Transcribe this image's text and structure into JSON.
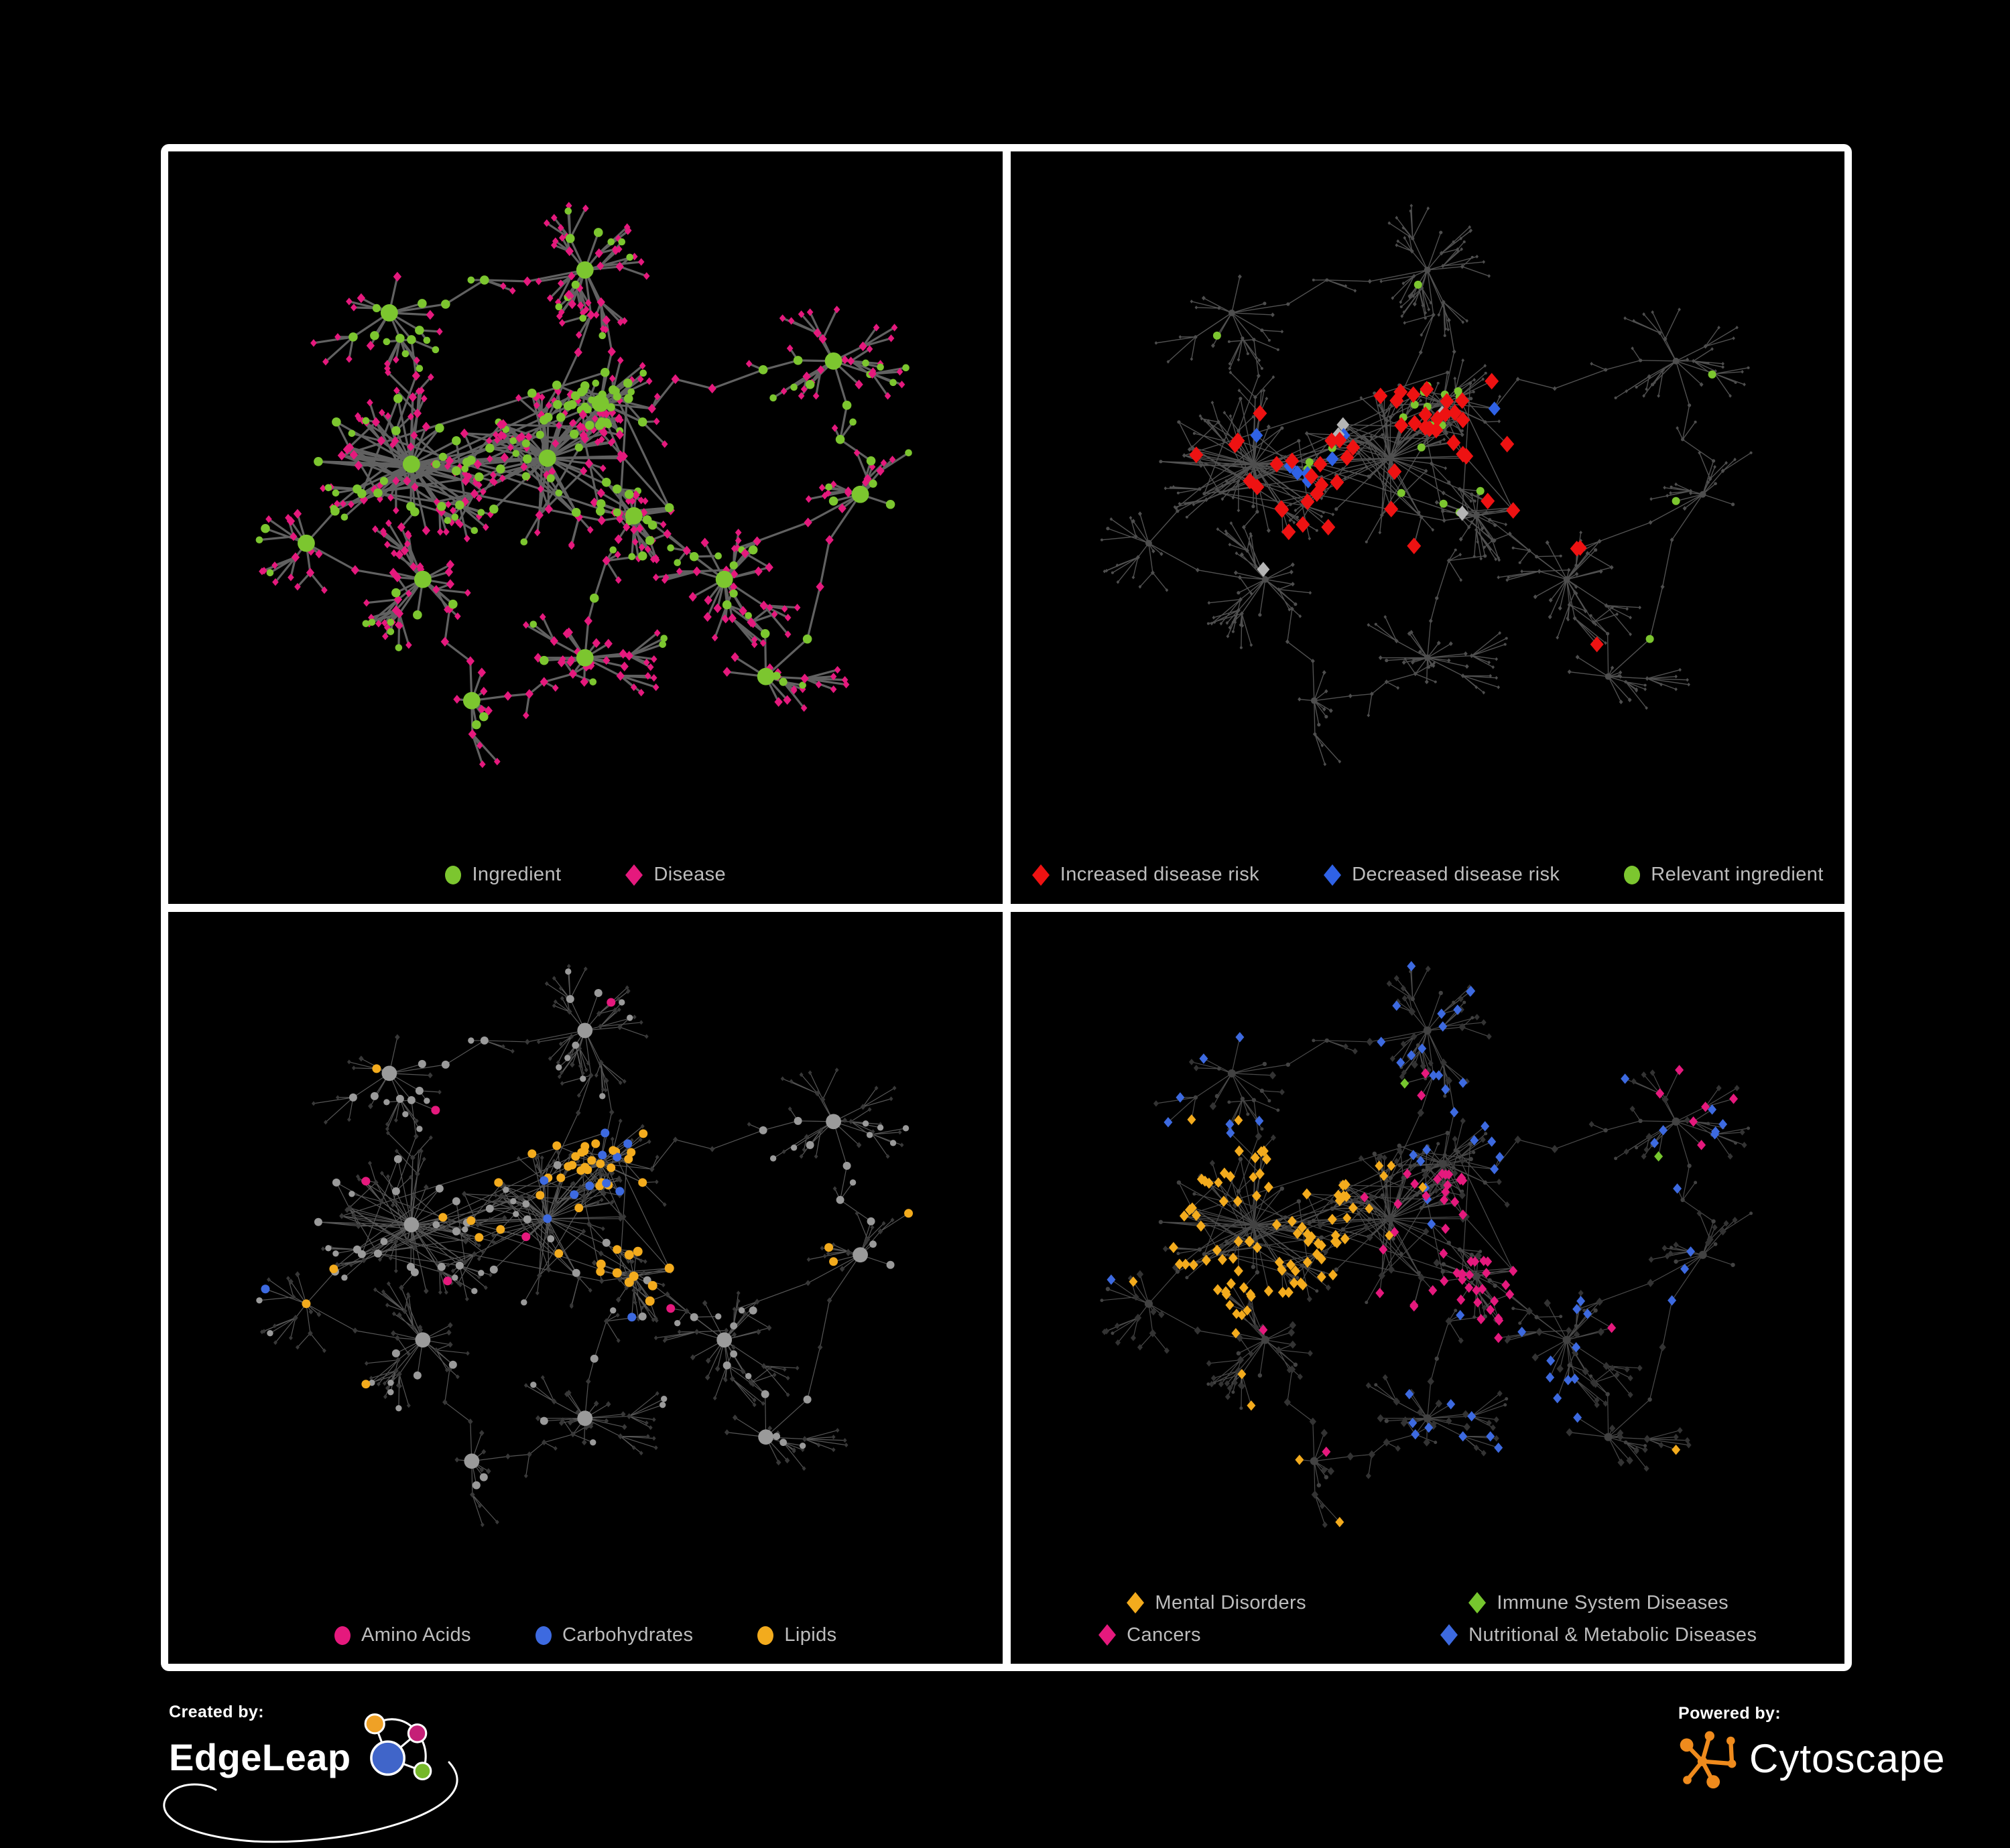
{
  "page": {
    "background": "#000000",
    "frame_color": "#ffffff"
  },
  "colors": {
    "green": "#7cc62f",
    "pink": "#e5197d",
    "red": "#ee1212",
    "blue": "#3d6ae0",
    "royal_blue": "#2f62e6",
    "orange": "#f3ab1d",
    "gray_node": "#9a9a9a",
    "dark_node": "#333333",
    "legend_text": "#bdbdbd"
  },
  "panels": [
    {
      "name": "ingredient-disease",
      "legend_grid": false,
      "legend_rows": [
        [
          {
            "label": "Ingredient",
            "shape": "circle",
            "color": "#7cc62f"
          },
          {
            "label": "Disease",
            "shape": "diamond",
            "color": "#e5197d"
          }
        ]
      ],
      "style": {
        "edge": "#616161",
        "edgeW": 3.2,
        "edgeO": 1,
        "baseC": {
          "color": "#7cc62f",
          "size": 6.8
        },
        "baseD": {
          "color": "#e5197d",
          "size": 6.2
        },
        "rules": []
      }
    },
    {
      "name": "disease-risk",
      "legend_grid": false,
      "legend_rows": [
        [
          {
            "label": "Increased disease risk",
            "shape": "diamond",
            "color": "#ee1212"
          },
          {
            "label": "Decreased disease risk",
            "shape": "diamond",
            "color": "#2f62e6"
          },
          {
            "label": "Relevant ingredient",
            "shape": "circle",
            "color": "#7cc62f"
          }
        ]
      ],
      "style": {
        "edge": "#565656",
        "edgeW": 1.4,
        "edgeO": 0.95,
        "baseC": {
          "color": "#4e4e4e",
          "size": 2.6
        },
        "baseD": {
          "color": "#4e4e4e",
          "size": 3
        },
        "rules": [
          {
            "shape": "diamond",
            "color": "#ee1212",
            "size": 10.5,
            "near": [
              0.44,
              0.45
            ],
            "dist": 0.2,
            "p": 0.25
          },
          {
            "shape": "diamond",
            "color": "#ee1212",
            "size": 10.5,
            "near": [
              0.29,
              0.45
            ],
            "dist": 0.1,
            "p": 0.12
          },
          {
            "shape": "diamond",
            "color": "#ee1212",
            "size": 10,
            "near": [
              0.7,
              0.72
            ],
            "dist": 0.12,
            "p": 0.1
          },
          {
            "shape": "diamond",
            "color": "#b5b5b5",
            "size": 9.5,
            "near": [
              0.42,
              0.5
            ],
            "dist": 0.2,
            "p": 0.05
          },
          {
            "shape": "diamond",
            "color": "#2f62e6",
            "size": 9.5,
            "near": [
              0.33,
              0.43
            ],
            "dist": 0.08,
            "p": 0.3
          },
          {
            "shape": "diamond",
            "color": "#2f62e6",
            "size": 9.5,
            "near": [
              0.86,
              0.17
            ],
            "dist": 0.07,
            "p": 0.55
          },
          {
            "shape": "diamond",
            "color": "#2f62e6",
            "size": 9,
            "near": [
              0.6,
              0.33
            ],
            "dist": 0.07,
            "p": 0.1
          },
          {
            "shape": "circle",
            "color": "#7cc62f",
            "size": 6,
            "near": [
              0.44,
              0.44
            ],
            "dist": 0.16,
            "p": 0.3
          },
          {
            "shape": "circle",
            "color": "#7cc62f",
            "size": 6,
            "near": [
              0.5,
              0.5
            ],
            "dist": 10,
            "p": 0.05
          }
        ]
      }
    },
    {
      "name": "nutrient-classes",
      "legend_grid": false,
      "legend_rows": [
        [
          {
            "label": "Amino Acids",
            "shape": "circle",
            "color": "#e5197d"
          },
          {
            "label": "Carbohydrates",
            "shape": "circle",
            "color": "#3d6ae0"
          },
          {
            "label": "Lipids",
            "shape": "circle",
            "color": "#f3ab1d"
          }
        ]
      ],
      "style": {
        "edge": "#6f6f6f",
        "edgeW": 1.2,
        "edgeO": 0.78,
        "baseC": {
          "color": "#9a9a9a",
          "size": 6
        },
        "baseD": {
          "color": "#383838",
          "size": 3.8
        },
        "rules": [
          {
            "shape": "circle",
            "color": "#3d6ae0",
            "size": 6.5,
            "near": [
              0.52,
              0.37
            ],
            "dist": 0.08,
            "p": 0.3
          },
          {
            "shape": "circle",
            "color": "#f3ab1d",
            "size": 6.5,
            "near": [
              0.52,
              0.37
            ],
            "dist": 0.11,
            "p": 0.9
          },
          {
            "shape": "circle",
            "color": "#f3ab1d",
            "size": 6.5,
            "near": [
              0.45,
              0.46
            ],
            "dist": 0.13,
            "p": 0.3
          },
          {
            "shape": "circle",
            "color": "#f3ab1d",
            "size": 7,
            "near": [
              0.565,
              0.555
            ],
            "dist": 0.05,
            "p": 0.85
          },
          {
            "shape": "circle",
            "color": "#f3ab1d",
            "size": 7,
            "near": [
              0.5,
              0.79
            ],
            "dist": 0.04,
            "p": 0.7
          },
          {
            "shape": "circle",
            "color": "#f3ab1d",
            "size": 6.5,
            "near": [
              0.5,
              0.5
            ],
            "dist": 10,
            "p": 0.04
          },
          {
            "shape": "circle",
            "color": "#e5197d",
            "size": 6.5,
            "near": [
              0.5,
              0.5
            ],
            "dist": 10,
            "p": 0.07
          },
          {
            "shape": "circle",
            "color": "#3d6ae0",
            "size": 6.5,
            "near": [
              0.5,
              0.5
            ],
            "dist": 10,
            "p": 0.015
          }
        ]
      }
    },
    {
      "name": "disease-classes",
      "legend_grid": true,
      "legend_rows": [
        [
          {
            "label": "Mental Disorders",
            "shape": "diamond",
            "color": "#f3ab1d"
          },
          {
            "label": "Immune System Diseases",
            "shape": "diamond",
            "color": "#76c62e"
          }
        ],
        [
          {
            "label": "Cancers",
            "shape": "diamond",
            "color": "#e5197d"
          },
          {
            "label": "Nutritional & Metabolic Diseases",
            "shape": "diamond",
            "color": "#3d6ae0"
          }
        ]
      ],
      "style": {
        "edge": "#585858",
        "edgeW": 1.2,
        "edgeO": 0.85,
        "baseC": {
          "color": "#424242",
          "size": 3.2
        },
        "baseD": {
          "color": "#333333",
          "size": 5.2
        },
        "rules": [
          {
            "shape": "diamond",
            "color": "#f3ab1d",
            "size": 7,
            "near": [
              0.28,
              0.47
            ],
            "dist": 0.13,
            "p": 0.85
          },
          {
            "shape": "diamond",
            "color": "#f3ab1d",
            "size": 6.5,
            "near": [
              0.28,
              0.47
            ],
            "dist": 0.2,
            "p": 0.3
          },
          {
            "shape": "diamond",
            "color": "#e5197d",
            "size": 6.5,
            "near": [
              0.5,
              0.5
            ],
            "dist": 0.13,
            "p": 0.4
          },
          {
            "shape": "diamond",
            "color": "#e5197d",
            "size": 6.5,
            "near": [
              0.565,
              0.555
            ],
            "dist": 0.08,
            "p": 0.5
          },
          {
            "shape": "diamond",
            "color": "#e5197d",
            "size": 6.5,
            "near": [
              0.87,
              0.28
            ],
            "dist": 0.08,
            "p": 0.4
          },
          {
            "shape": "diamond",
            "color": "#3d6ae0",
            "size": 6.5,
            "near": [
              0.78,
              0.35
            ],
            "dist": 0.3,
            "p": 0.25
          },
          {
            "shape": "diamond",
            "color": "#3d6ae0",
            "size": 6.5,
            "near": [
              0.6,
              0.78
            ],
            "dist": 0.15,
            "p": 0.22
          },
          {
            "shape": "diamond",
            "color": "#3d6ae0",
            "size": 6.5,
            "near": [
              0.5,
              0.15
            ],
            "dist": 0.15,
            "p": 0.3
          },
          {
            "shape": "diamond",
            "color": "#3d6ae0",
            "size": 6.5,
            "near": [
              0.24,
              0.22
            ],
            "dist": 0.13,
            "p": 0.3
          },
          {
            "shape": "diamond",
            "color": "#3d6ae0",
            "size": 6.5,
            "near": [
              0.5,
              0.5
            ],
            "dist": 10,
            "p": 0.04
          },
          {
            "shape": "diamond",
            "color": "#76c62e",
            "size": 6.5,
            "near": [
              0.5,
              0.5
            ],
            "dist": 10,
            "p": 0.018
          },
          {
            "shape": "diamond",
            "color": "#f3ab1d",
            "size": 6.5,
            "near": [
              0.5,
              0.5
            ],
            "dist": 10,
            "p": 0.02
          },
          {
            "shape": "diamond",
            "color": "#e5197d",
            "size": 6.5,
            "near": [
              0.5,
              0.5
            ],
            "dist": 10,
            "p": 0.02
          }
        ]
      }
    }
  ],
  "footer": {
    "created_by": "Created by:",
    "brand": "EdgeLeap",
    "powered_by": "Powered by:",
    "engine": "Cytoscape",
    "cytoscape_color": "#ef8b1d",
    "edgeleap_colors": {
      "blue": "#4065c9",
      "orange": "#efa126",
      "pink": "#c52077",
      "green": "#76b82a"
    }
  },
  "network": {
    "seed": 42,
    "long_links": 14,
    "hubs": [
      [
        0.27,
        0.47,
        42,
        0.105,
        0.3,
        0.45,
        26
      ],
      [
        0.45,
        0.46,
        40,
        0.1,
        0.35,
        0.4,
        26
      ],
      [
        0.52,
        0.37,
        26,
        0.055,
        0.8,
        0.15,
        12
      ],
      [
        0.565,
        0.555,
        20,
        0.05,
        0.2,
        0.12,
        5
      ],
      [
        0.5,
        0.79,
        20,
        0.055,
        0.08,
        0.05,
        0
      ],
      [
        0.285,
        0.66,
        16,
        0.06,
        0.2,
        0.3,
        3
      ],
      [
        0.685,
        0.66,
        20,
        0.06,
        0.15,
        0.35,
        4
      ],
      [
        0.83,
        0.3,
        10,
        0.05,
        0.25,
        0.5,
        0
      ],
      [
        0.24,
        0.22,
        10,
        0.06,
        0.3,
        0.5,
        0
      ],
      [
        0.5,
        0.15,
        12,
        0.06,
        0.35,
        0.45,
        0
      ],
      [
        0.865,
        0.52,
        9,
        0.05,
        0.3,
        0.4,
        0
      ],
      [
        0.13,
        0.6,
        8,
        0.05,
        0.25,
        0.4,
        0
      ],
      [
        0.74,
        0.82,
        10,
        0.05,
        0.2,
        0.3,
        0
      ],
      [
        0.35,
        0.86,
        8,
        0.05,
        0.2,
        0.3,
        0
      ]
    ],
    "chains": [
      [
        0,
        1,
        3
      ],
      [
        1,
        2,
        2
      ],
      [
        1,
        3,
        2
      ],
      [
        0,
        5,
        2
      ],
      [
        0,
        8,
        3
      ],
      [
        1,
        9,
        3
      ],
      [
        3,
        4,
        4
      ],
      [
        3,
        6,
        3
      ],
      [
        6,
        10,
        2
      ],
      [
        7,
        2,
        5
      ],
      [
        5,
        11,
        2
      ],
      [
        6,
        12,
        2
      ],
      [
        5,
        13,
        3
      ],
      [
        0,
        11,
        2
      ],
      [
        9,
        8,
        3
      ],
      [
        1,
        6,
        3
      ],
      [
        2,
        9,
        2
      ],
      [
        10,
        12,
        3
      ],
      [
        7,
        10,
        3
      ],
      [
        4,
        13,
        4
      ]
    ]
  }
}
